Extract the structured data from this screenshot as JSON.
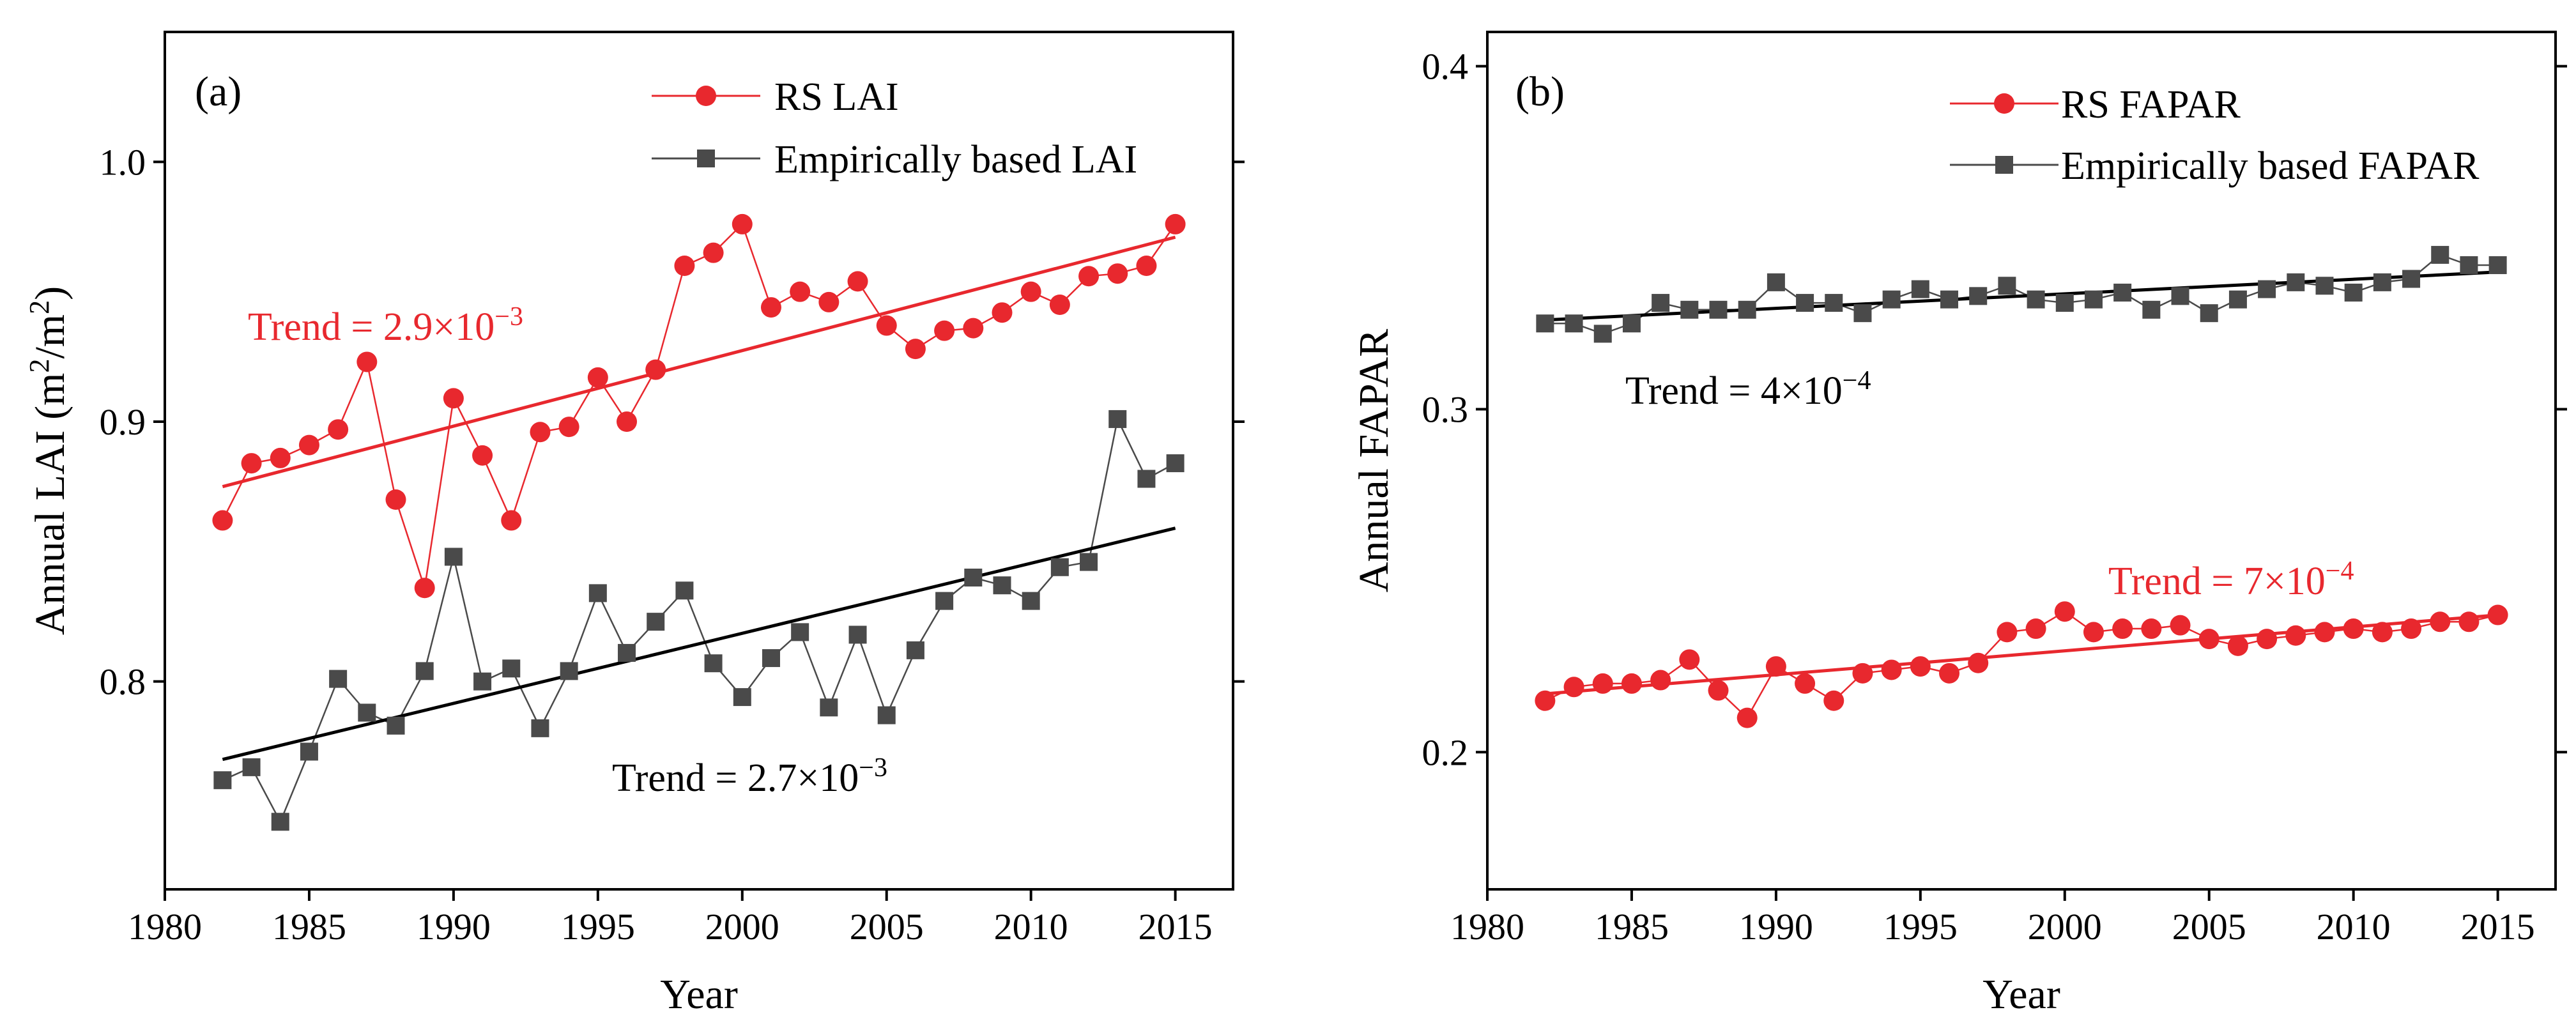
{
  "chart_data": [
    {
      "type": "line",
      "panel_label": "(a)",
      "xlabel": "Year",
      "ylabel": "Annual LAI (m",
      "ylabel_sup1": "2",
      "ylabel_mid": "/m",
      "ylabel_sup2": "2",
      "ylabel_end": ")",
      "xlim": [
        1980,
        2017
      ],
      "ylim": [
        0.72,
        1.05
      ],
      "xticks": [
        1980,
        1985,
        1990,
        1995,
        2000,
        2005,
        2010,
        2015
      ],
      "yticks": [
        0.8,
        0.9,
        1.0
      ],
      "ytick_labels": [
        "0.8",
        "0.9",
        "1.0"
      ],
      "legend_position": "top-right",
      "x": [
        1982,
        1983,
        1984,
        1985,
        1986,
        1987,
        1988,
        1989,
        1990,
        1991,
        1992,
        1993,
        1994,
        1995,
        1996,
        1997,
        1998,
        1999,
        2000,
        2001,
        2002,
        2003,
        2004,
        2005,
        2006,
        2007,
        2008,
        2009,
        2010,
        2011,
        2012,
        2013,
        2014,
        2015
      ],
      "series": [
        {
          "name": "RS LAI",
          "color": "#e8282e",
          "marker": "circle",
          "values": [
            0.862,
            0.884,
            0.886,
            0.891,
            0.897,
            0.923,
            0.87,
            0.836,
            0.909,
            0.887,
            0.862,
            0.896,
            0.898,
            0.917,
            0.9,
            0.92,
            0.96,
            0.965,
            0.976,
            0.944,
            0.95,
            0.946,
            0.954,
            0.937,
            0.928,
            0.935,
            0.936,
            0.942,
            0.95,
            0.945,
            0.956,
            0.957,
            0.96,
            0.976
          ],
          "trend": {
            "start": [
              1982,
              0.875
            ],
            "end": [
              2015,
              0.971
            ]
          },
          "trend_label": {
            "prefix": "Trend = 2.9×10",
            "exponent": "−3"
          }
        },
        {
          "name": "Empirically based LAI",
          "color": "#4a4a4a",
          "trend_color": "#000000",
          "marker": "square",
          "values": [
            0.762,
            0.767,
            0.746,
            0.773,
            0.801,
            0.788,
            0.783,
            0.804,
            0.848,
            0.8,
            0.805,
            0.782,
            0.804,
            0.834,
            0.811,
            0.823,
            0.835,
            0.807,
            0.794,
            0.809,
            0.819,
            0.79,
            0.818,
            0.787,
            0.812,
            0.831,
            0.84,
            0.837,
            0.831,
            0.844,
            0.846,
            0.901,
            0.878,
            0.884
          ],
          "trend": {
            "start": [
              1982,
              0.77
            ],
            "end": [
              2015,
              0.859
            ]
          },
          "trend_label": {
            "prefix": "Trend = 2.7×10",
            "exponent": "−3"
          }
        }
      ]
    },
    {
      "type": "line",
      "panel_label": "(b)",
      "xlabel": "Year",
      "ylabel": "Annual FAPAR",
      "xlim": [
        1980,
        2017
      ],
      "ylim": [
        0.16,
        0.41
      ],
      "xticks": [
        1980,
        1985,
        1990,
        1995,
        2000,
        2005,
        2010,
        2015
      ],
      "yticks": [
        0.2,
        0.3,
        0.4
      ],
      "ytick_labels": [
        "0.2",
        "0.3",
        "0.4"
      ],
      "legend_position": "top-right",
      "x": [
        1982,
        1983,
        1984,
        1985,
        1986,
        1987,
        1988,
        1989,
        1990,
        1991,
        1992,
        1993,
        1994,
        1995,
        1996,
        1997,
        1998,
        1999,
        2000,
        2001,
        2002,
        2003,
        2004,
        2005,
        2006,
        2007,
        2008,
        2009,
        2010,
        2011,
        2012,
        2013,
        2014,
        2015
      ],
      "series": [
        {
          "name": "RS FAPAR",
          "color": "#e8282e",
          "marker": "circle",
          "values": [
            0.215,
            0.219,
            0.22,
            0.22,
            0.221,
            0.227,
            0.218,
            0.21,
            0.225,
            0.22,
            0.215,
            0.223,
            0.224,
            0.225,
            0.223,
            0.226,
            0.235,
            0.236,
            0.241,
            0.235,
            0.236,
            0.236,
            0.237,
            0.233,
            0.231,
            0.233,
            0.234,
            0.235,
            0.236,
            0.235,
            0.236,
            0.238,
            0.238,
            0.24
          ],
          "trend": {
            "start": [
              1982,
              0.217
            ],
            "end": [
              2015,
              0.24
            ]
          },
          "trend_label": {
            "prefix": "Trend = 7×10",
            "exponent": "−4"
          }
        },
        {
          "name": "Empirically based FAPAR",
          "color": "#4a4a4a",
          "trend_color": "#000000",
          "marker": "square",
          "values": [
            0.325,
            0.325,
            0.322,
            0.325,
            0.331,
            0.329,
            0.329,
            0.329,
            0.337,
            0.331,
            0.331,
            0.328,
            0.332,
            0.335,
            0.332,
            0.333,
            0.336,
            0.332,
            0.331,
            0.332,
            0.334,
            0.329,
            0.333,
            0.328,
            0.332,
            0.335,
            0.337,
            0.336,
            0.334,
            0.337,
            0.338,
            0.345,
            0.342,
            0.342
          ],
          "trend": {
            "start": [
              1982,
              0.326
            ],
            "end": [
              2015,
              0.34
            ]
          },
          "trend_label": {
            "prefix": "Trend = 4×10",
            "exponent": "−4"
          }
        }
      ]
    }
  ]
}
